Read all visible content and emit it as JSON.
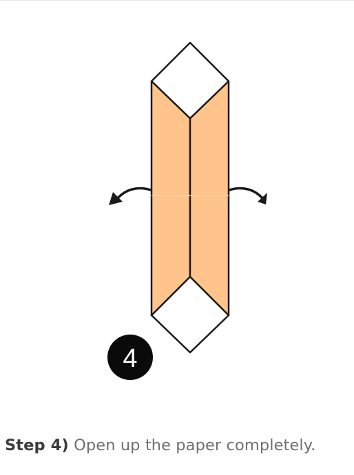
{
  "step": {
    "number": "4",
    "label": "Step 4)",
    "instruction": "Open up the paper completely."
  },
  "colors": {
    "paper_front": "#fec48b",
    "paper_back": "#ffffff",
    "outline": "#1a1a1a",
    "crease": "#d9d9d9",
    "badge": "#0a0a0a",
    "badge_text": "#ffffff",
    "arrow": "#1a1a1a"
  },
  "icons": {
    "left_arrow": "unfold-left-arrow-icon",
    "right_arrow": "unfold-right-arrow-icon"
  }
}
